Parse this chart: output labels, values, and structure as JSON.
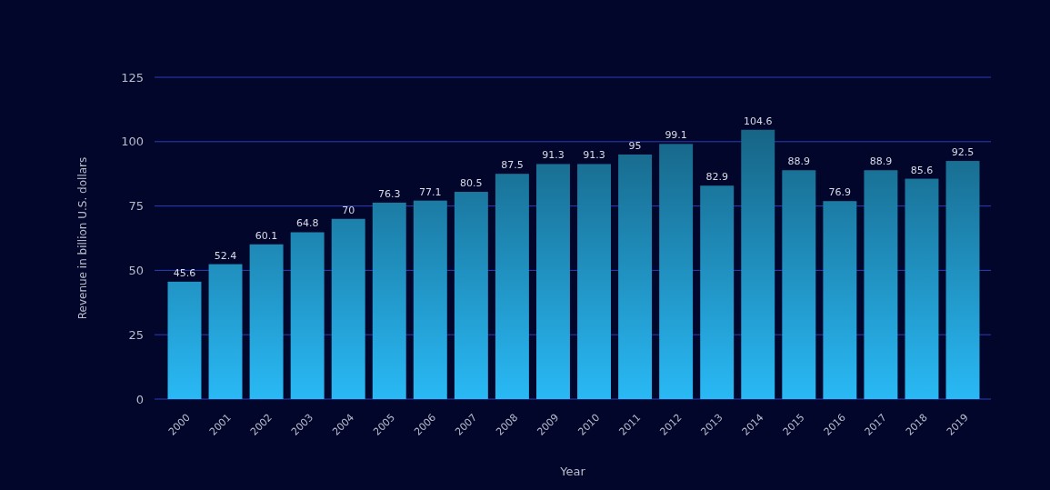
{
  "chart_data": {
    "type": "bar",
    "xlabel": "Year",
    "ylabel": "Revenue in billion U.S. dollars",
    "categories": [
      "2000",
      "2001",
      "2002",
      "2003",
      "2004",
      "2005",
      "2006",
      "2007",
      "2008",
      "2009",
      "2010",
      "2011",
      "2012",
      "2013",
      "2014",
      "2015",
      "2016",
      "2017",
      "2018",
      "2019"
    ],
    "values": [
      45.6,
      52.4,
      60.1,
      64.8,
      70,
      76.3,
      77.1,
      80.5,
      87.5,
      91.3,
      91.3,
      95,
      99.1,
      82.9,
      104.6,
      88.9,
      76.9,
      88.9,
      85.6,
      92.5
    ],
    "color": "#29b9f5",
    "ylim": [
      0,
      125
    ],
    "yticks": [
      0,
      25,
      50,
      75,
      100,
      125
    ],
    "grid": "y",
    "data_labels": true
  }
}
